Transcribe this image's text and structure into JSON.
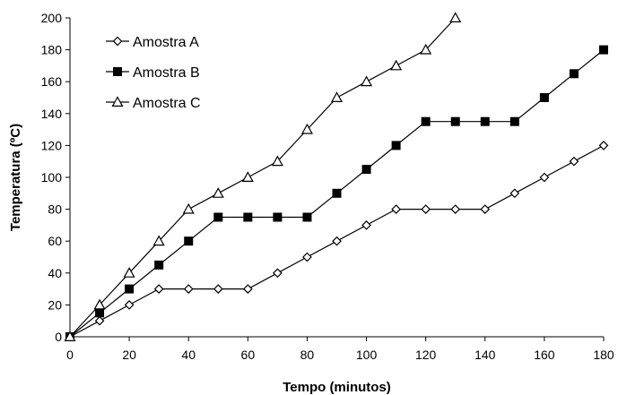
{
  "chart_data": {
    "type": "line",
    "title": "",
    "xlabel": "Tempo (minutos)",
    "ylabel": "Temperatura (ºC)",
    "xlim": [
      0,
      180
    ],
    "ylim": [
      0,
      200
    ],
    "xticks": [
      0,
      20,
      40,
      60,
      80,
      100,
      120,
      140,
      160,
      180
    ],
    "yticks": [
      0,
      20,
      40,
      60,
      80,
      100,
      120,
      140,
      160,
      180,
      200
    ],
    "grid": false,
    "legend_position": "top-left",
    "series": [
      {
        "name": "Amostra A",
        "marker": "diamond-open",
        "color": "#000000",
        "x": [
          0,
          10,
          20,
          30,
          40,
          50,
          60,
          70,
          80,
          90,
          100,
          110,
          120,
          130,
          140,
          150,
          160,
          170,
          180
        ],
        "values": [
          0,
          10,
          20,
          30,
          30,
          30,
          30,
          40,
          50,
          60,
          70,
          80,
          80,
          80,
          80,
          90,
          100,
          110,
          120
        ]
      },
      {
        "name": "Amostra B",
        "marker": "square-filled",
        "color": "#000000",
        "x": [
          0,
          10,
          20,
          30,
          40,
          50,
          60,
          70,
          80,
          90,
          100,
          110,
          120,
          130,
          140,
          150,
          160,
          170,
          180
        ],
        "values": [
          0,
          15,
          30,
          45,
          60,
          75,
          75,
          75,
          75,
          90,
          105,
          120,
          135,
          135,
          135,
          135,
          150,
          165,
          180
        ]
      },
      {
        "name": "Amostra C",
        "marker": "triangle-open",
        "color": "#000000",
        "x": [
          0,
          10,
          20,
          30,
          40,
          50,
          60,
          70,
          80,
          90,
          100,
          110,
          120,
          130
        ],
        "values": [
          0,
          20,
          40,
          60,
          80,
          90,
          100,
          110,
          130,
          150,
          160,
          170,
          180,
          200
        ]
      }
    ]
  }
}
